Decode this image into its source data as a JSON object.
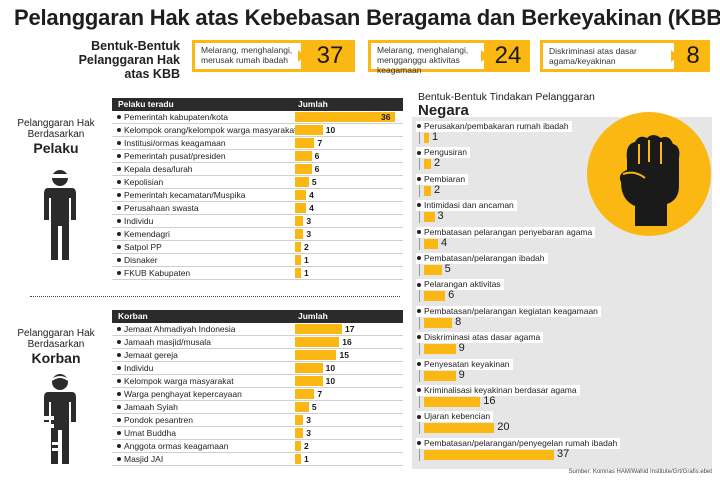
{
  "title": "Pelanggaran Hak atas Kebebasan Beragama dan Berkeyakinan (KBB)",
  "forms_label": [
    "Bentuk-Bentuk",
    "Pelanggaran Hak",
    "atas KBB"
  ],
  "summary": [
    {
      "label": [
        "Melarang, menghalangi,",
        "merusak rumah ibadah"
      ],
      "value": "37"
    },
    {
      "label": [
        "Melarang, menghalangi,",
        "mengganggu aktivitas",
        "keagamaan"
      ],
      "value": "24"
    },
    {
      "label": [
        "Diskriminasi atas dasar",
        "agama/keyakinan"
      ],
      "value": "8"
    }
  ],
  "pelaku": {
    "side_label": [
      "Pelanggaran Hak",
      "Berdasarkan"
    ],
    "side_big": "Pelaku",
    "header": {
      "col1": "Pelaku teradu",
      "col2": "Jumlah"
    }
  },
  "korban": {
    "side_label": [
      "Pelanggaran Hak",
      "Berdasarkan"
    ],
    "side_big": "Korban",
    "header": {
      "col1": "Korban",
      "col2": "Jumlah"
    }
  },
  "negara": {
    "title": "Bentuk-Bentuk Tindakan Pelanggaran",
    "title_big": "Negara"
  },
  "source": "Sumber: Komnas HAM/Wahid Institute/Grt/Grafis:ebet",
  "chart_data": [
    {
      "type": "bar",
      "title": "Pelanggaran Hak Berdasarkan Pelaku",
      "xlabel": "Pelaku teradu",
      "ylabel": "Jumlah",
      "categories": [
        "Pemerintah kabupaten/kota",
        "Kelompok orang/kelompok warga masyarakat",
        "Institusi/ormas keagamaan",
        "Pemerintah pusat/presiden",
        "Kepala desa/lurah",
        "Kepolisian",
        "Pemerintah kecamatan/Muspika",
        "Perusahaan swasta",
        "Individu",
        "Kemendagri",
        "Satpol PP",
        "Disnaker",
        "FKUB Kabupaten"
      ],
      "values": [
        36,
        10,
        7,
        6,
        6,
        5,
        4,
        4,
        3,
        3,
        2,
        1,
        1
      ]
    },
    {
      "type": "bar",
      "title": "Pelanggaran Hak Berdasarkan Korban",
      "xlabel": "Korban",
      "ylabel": "Jumlah",
      "categories": [
        "Jemaat Ahmadiyah Indonesia",
        "Jamaah masjid/musala",
        "Jemaat gereja",
        "Individu",
        "Kelompok warga masyarakat",
        "Warga penghayat kepercayaan",
        "Jamaah Syiah",
        "Pondok pesantren",
        "Umat Buddha",
        "Anggota ormas keagamaan",
        "Masjid JAI"
      ],
      "values": [
        17,
        16,
        15,
        10,
        10,
        7,
        5,
        3,
        3,
        2,
        1
      ]
    },
    {
      "type": "bar",
      "title": "Bentuk-Bentuk Tindakan Pelanggaran Negara",
      "categories": [
        "Perusakan/pembakaran rumah ibadah",
        "Pengusiran",
        "Pembiaran",
        "Intimidasi dan ancaman",
        "Pembatasan pelarangan penyebaran agama",
        "Pembatasan/pelarangan ibadah",
        "Pelarangan aktivitas",
        "Pembatasan/pelarangan kegiatan keagamaan",
        "Diskriminasi atas dasar agama",
        "Penyesatan keyakinan",
        "Kriminalisasi keyakinan berdasar agama",
        "Ujaran kebencian",
        "Pembatasan/pelarangan/penyegelan rumah ibadah"
      ],
      "values": [
        1,
        2,
        2,
        3,
        4,
        5,
        6,
        8,
        9,
        9,
        16,
        20,
        37
      ]
    }
  ]
}
